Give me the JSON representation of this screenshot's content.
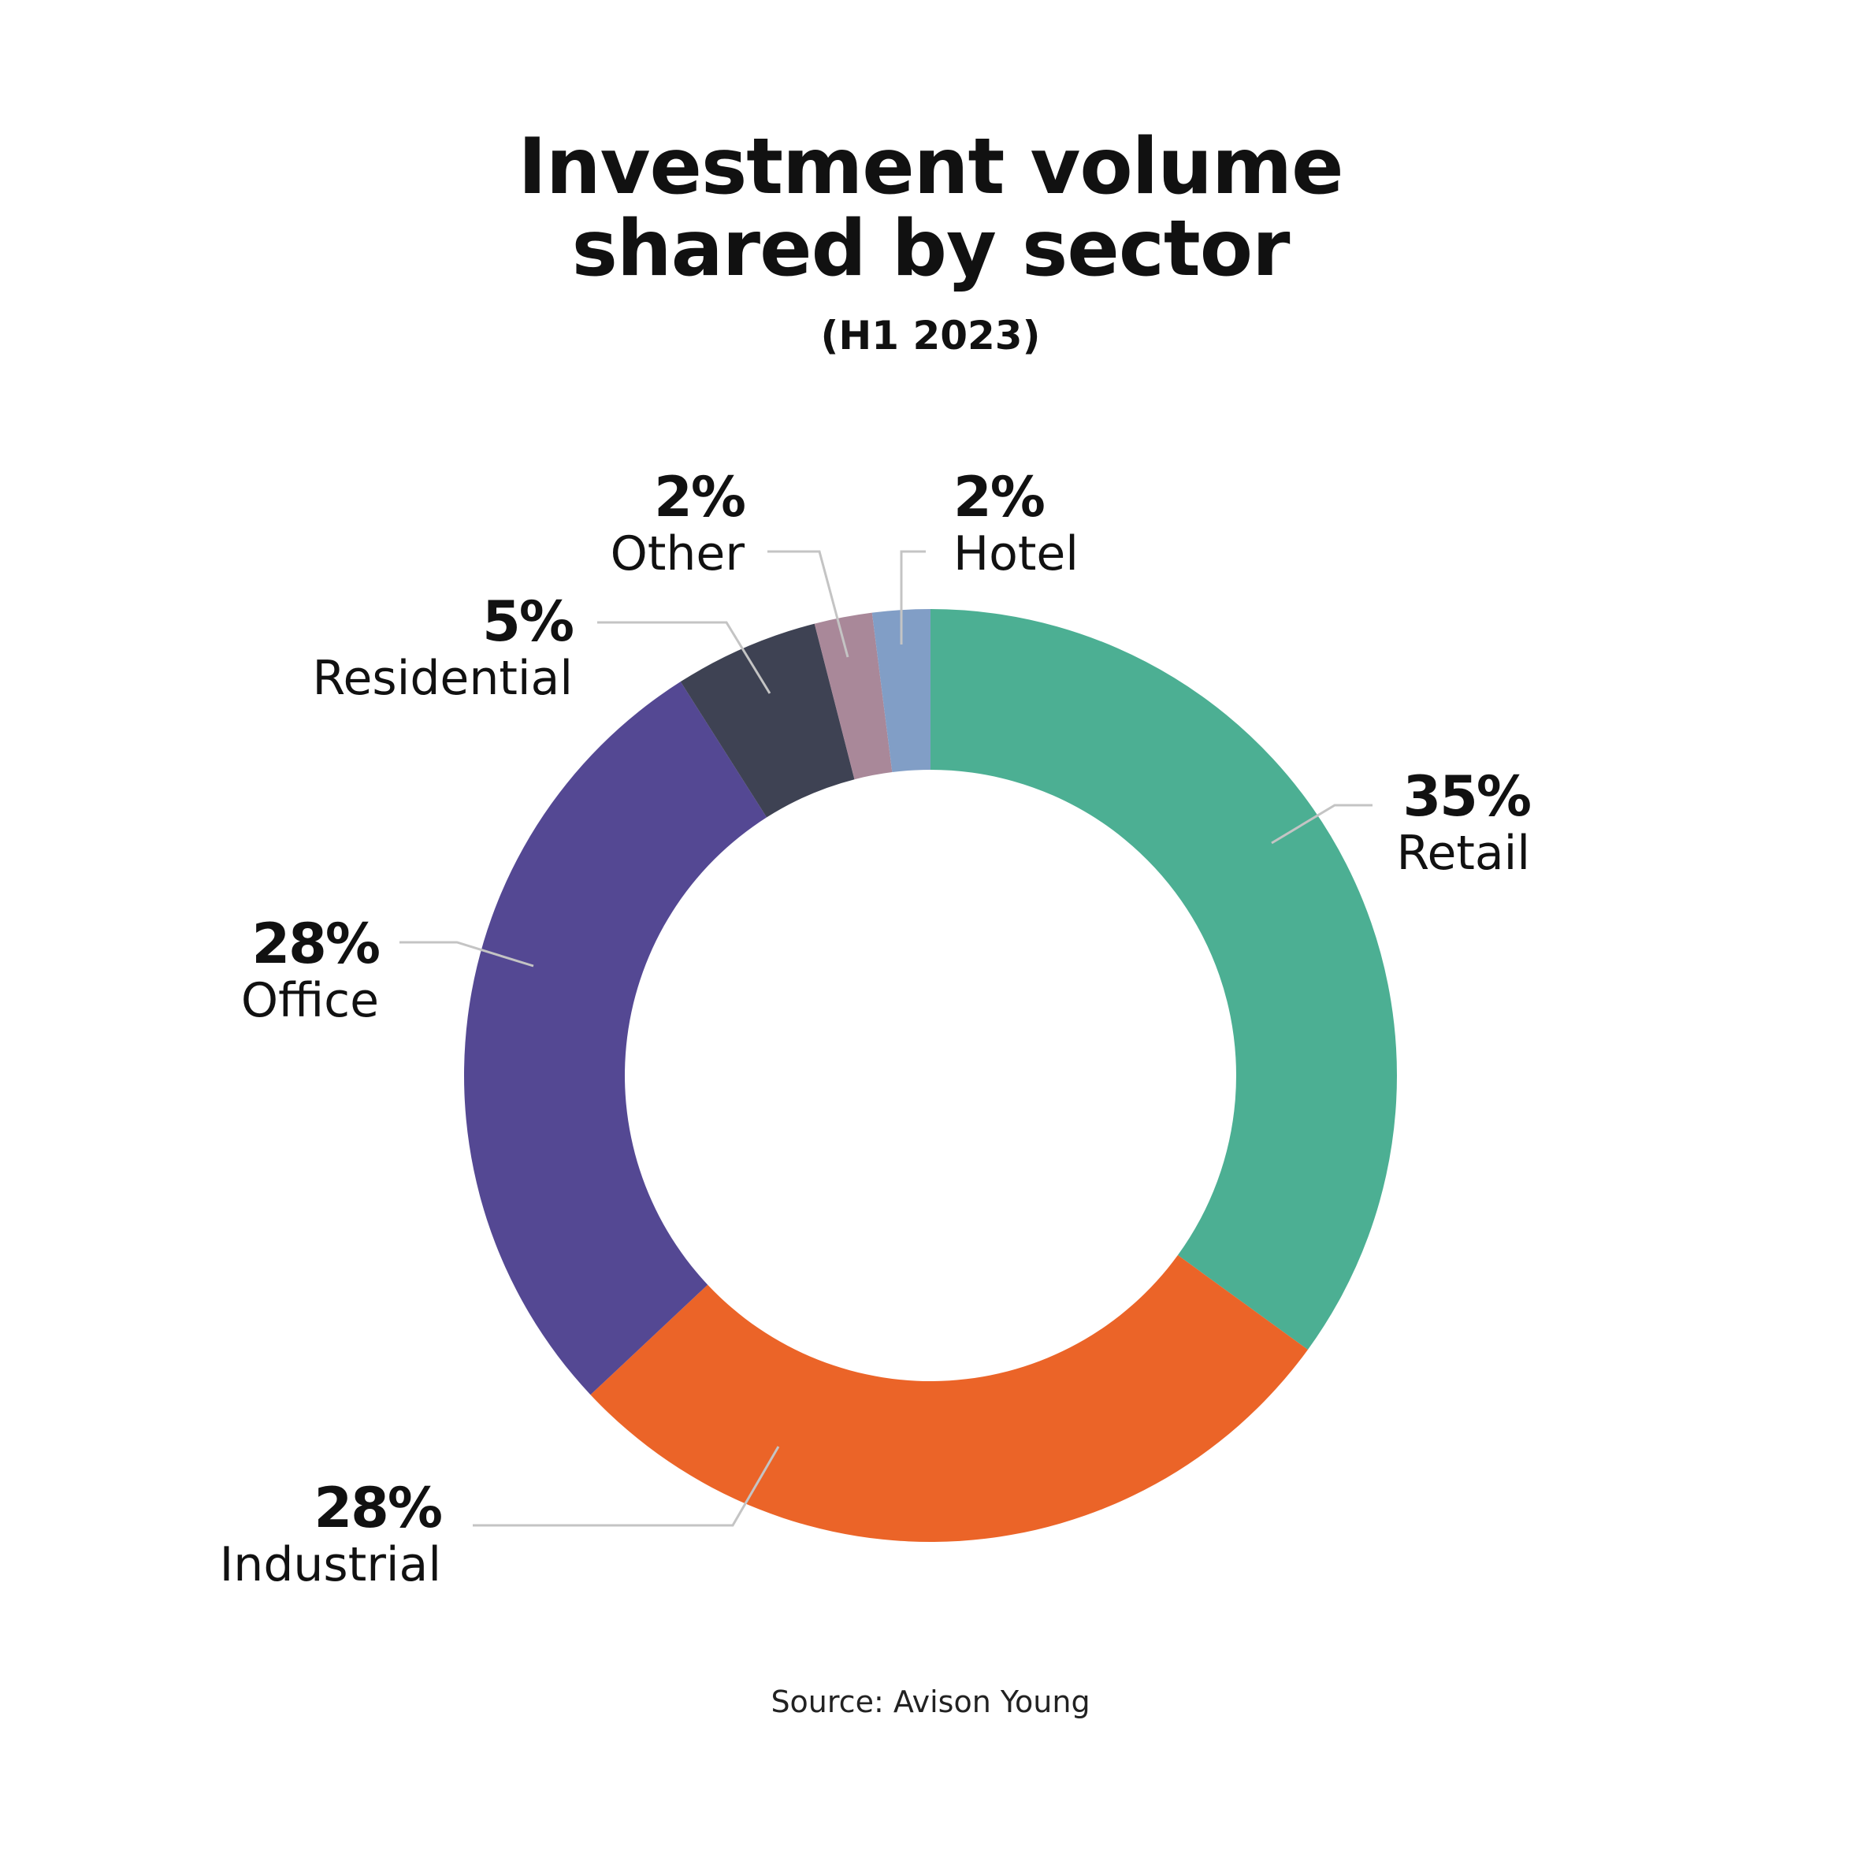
{
  "chart_data": {
    "type": "pie",
    "donut": true,
    "title_lines": [
      "Investment volume",
      "shared by sector"
    ],
    "subtitle": "(H1 2023)",
    "source": "Source: Avison Young",
    "slices": [
      {
        "category": "Retail",
        "value": 35,
        "label": "35%",
        "color": "#4caf93"
      },
      {
        "category": "Industrial",
        "value": 28,
        "label": "28%",
        "color": "#eb6428"
      },
      {
        "category": "Office",
        "value": 28,
        "label": "28%",
        "color": "#544893"
      },
      {
        "category": "Residential",
        "value": 5,
        "label": "5%",
        "color": "#3e4253"
      },
      {
        "category": "Other",
        "value": 2,
        "label": "2%",
        "color": "#a98899"
      },
      {
        "category": "Hotel",
        "value": 2,
        "label": "2%",
        "color": "#819ec6"
      }
    ]
  }
}
